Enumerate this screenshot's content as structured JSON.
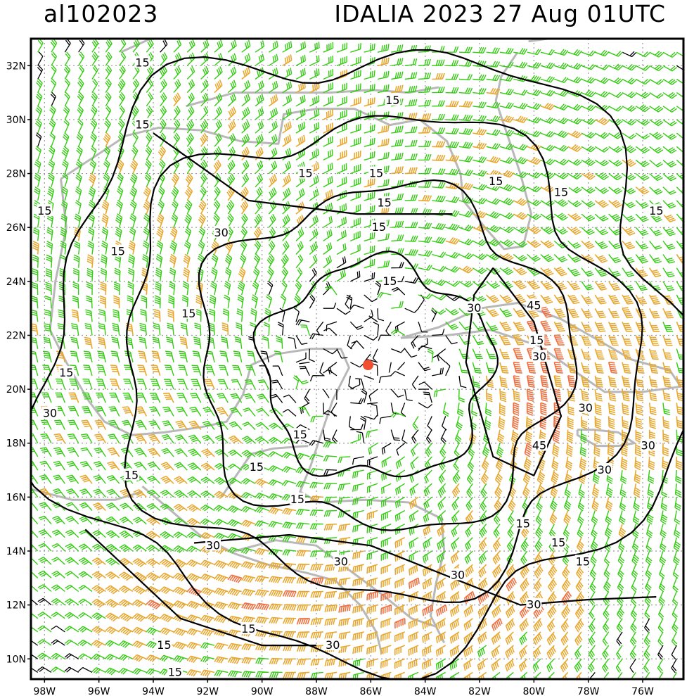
{
  "header": {
    "storm_id": "al102023",
    "title": "IDALIA 2023 27 Aug 01UTC"
  },
  "map": {
    "lon_range": [
      -98.5,
      -74.5
    ],
    "lat_range": [
      9.25,
      33.0
    ],
    "lon_ticks": [
      -98,
      -96,
      -94,
      -92,
      -90,
      -88,
      -86,
      -84,
      -82,
      -80,
      -78,
      -76
    ],
    "lon_labels": [
      "98W",
      "96W",
      "94W",
      "92W",
      "90W",
      "88W",
      "86W",
      "84W",
      "82W",
      "80W",
      "78W",
      "76W"
    ],
    "lat_ticks": [
      10,
      12,
      14,
      16,
      18,
      20,
      22,
      24,
      26,
      28,
      30,
      32
    ],
    "lat_labels": [
      "10N",
      "12N",
      "14N",
      "16N",
      "18N",
      "20N",
      "22N",
      "24N",
      "26N",
      "28N",
      "30N",
      "32N"
    ],
    "grid": true,
    "storm_center": {
      "lon": -86.1,
      "lat": 20.9
    },
    "colors": {
      "barb_calm": "#000000",
      "barb_15": "#33cc11",
      "barb_30": "#e8a830",
      "barb_45": "#f07040",
      "coast": "#b8b8b8",
      "center_marker": "#f05030",
      "contour": "#000000"
    },
    "contour_labels": [
      {
        "text": "15",
        "lon": -94.4,
        "lat": 32.1
      },
      {
        "text": "15",
        "lon": -94.4,
        "lat": 29.8
      },
      {
        "text": "15",
        "lon": -88.4,
        "lat": 28.0
      },
      {
        "text": "15",
        "lon": -85.2,
        "lat": 30.7
      },
      {
        "text": "15",
        "lon": -85.8,
        "lat": 28.0
      },
      {
        "text": "15",
        "lon": -85.5,
        "lat": 26.9
      },
      {
        "text": "15",
        "lon": -85.7,
        "lat": 26.0
      },
      {
        "text": "15",
        "lon": -81.4,
        "lat": 27.7
      },
      {
        "text": "15",
        "lon": -79.0,
        "lat": 27.3
      },
      {
        "text": "15",
        "lon": -75.5,
        "lat": 26.6
      },
      {
        "text": "15",
        "lon": -98.0,
        "lat": 26.6
      },
      {
        "text": "30",
        "lon": -91.5,
        "lat": 25.8
      },
      {
        "text": "15",
        "lon": -95.3,
        "lat": 25.1
      },
      {
        "text": "15",
        "lon": -85.3,
        "lat": 24.0
      },
      {
        "text": "30",
        "lon": -82.2,
        "lat": 23.0
      },
      {
        "text": "45",
        "lon": -80.0,
        "lat": 23.1
      },
      {
        "text": "15",
        "lon": -79.9,
        "lat": 21.8
      },
      {
        "text": "30",
        "lon": -79.8,
        "lat": 21.2
      },
      {
        "text": "15",
        "lon": -92.7,
        "lat": 22.8
      },
      {
        "text": "15",
        "lon": -97.2,
        "lat": 20.6
      },
      {
        "text": "30",
        "lon": -97.8,
        "lat": 19.1
      },
      {
        "text": "30",
        "lon": -78.1,
        "lat": 19.3
      },
      {
        "text": "45",
        "lon": -79.8,
        "lat": 17.9
      },
      {
        "text": "30",
        "lon": -75.8,
        "lat": 17.9
      },
      {
        "text": "30",
        "lon": -77.4,
        "lat": 17.0
      },
      {
        "text": "15",
        "lon": -88.6,
        "lat": 18.3
      },
      {
        "text": "15",
        "lon": -90.2,
        "lat": 17.1
      },
      {
        "text": "15",
        "lon": -94.8,
        "lat": 16.8
      },
      {
        "text": "15",
        "lon": -88.7,
        "lat": 15.9
      },
      {
        "text": "15",
        "lon": -80.4,
        "lat": 15.0
      },
      {
        "text": "15",
        "lon": -79.1,
        "lat": 14.3
      },
      {
        "text": "15",
        "lon": -78.2,
        "lat": 13.6
      },
      {
        "text": "30",
        "lon": -91.8,
        "lat": 14.2
      },
      {
        "text": "30",
        "lon": -87.1,
        "lat": 13.6
      },
      {
        "text": "30",
        "lon": -82.8,
        "lat": 13.1
      },
      {
        "text": "30",
        "lon": -80.0,
        "lat": 12.0
      },
      {
        "text": "15",
        "lon": -90.5,
        "lat": 11.1
      },
      {
        "text": "15",
        "lon": -93.6,
        "lat": 10.5
      },
      {
        "text": "30",
        "lon": -87.4,
        "lat": 10.5
      },
      {
        "text": "15",
        "lon": -93.2,
        "lat": 9.5
      }
    ]
  }
}
